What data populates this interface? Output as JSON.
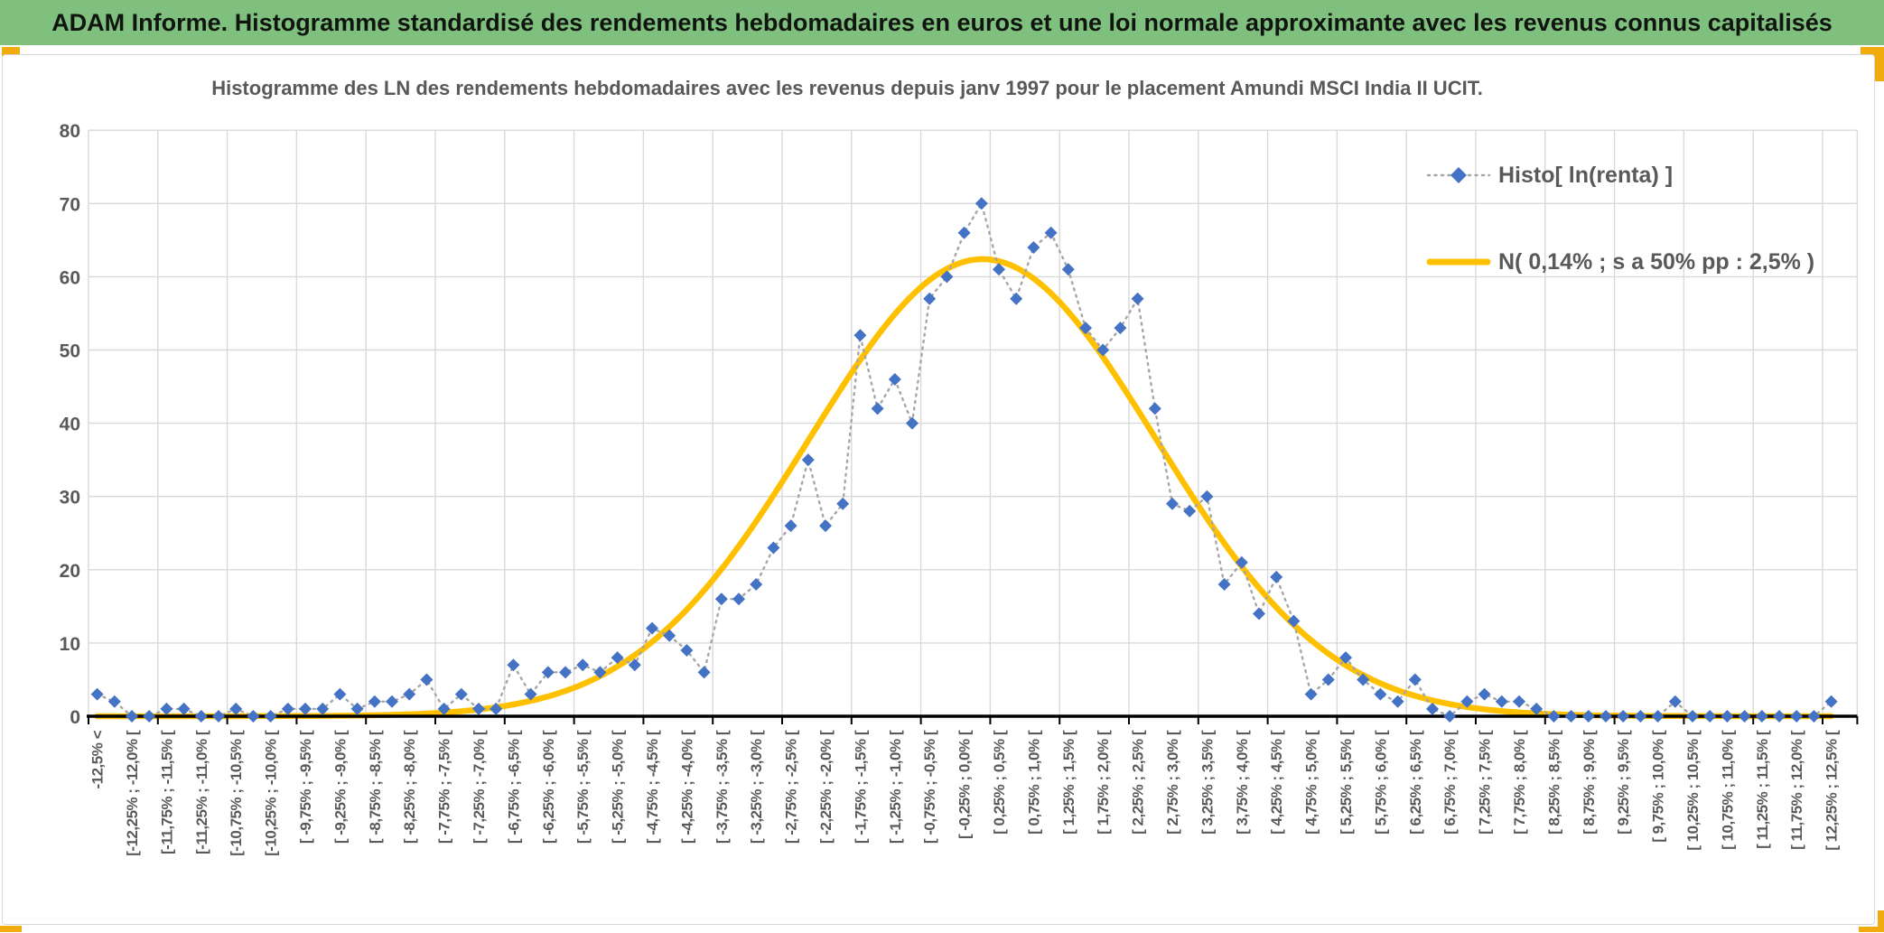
{
  "window": {
    "header_title": "ADAM Informe. Histogramme standardisé des rendements hebdomadaires en euros et une loi normale approximante avec les revenus connus capitalisés"
  },
  "chart": {
    "title": "Histogramme des LN des rendements hebdomadaires avec les revenus depuis janv 1997 pour le placement Amundi MSCI India II UCIT.",
    "legend": {
      "histo_label": "Histo[ ln(renta) ]",
      "normal_label": "N( 0,14% ; s a 50% pp : 2,5% )"
    },
    "colors": {
      "header_green": "#80C07E",
      "accent_orange": "#F2AB0E",
      "diamond_blue": "#4472C4",
      "dotted_gray": "#A6A6A6",
      "curve_gold": "#FFC000",
      "text_gray": "#595959",
      "gridline_gray": "#D9D9D9",
      "axis_black": "#000000"
    }
  },
  "chart_data": {
    "type": "line",
    "title": "Histogramme des LN des rendements hebdomadaires avec les revenus depuis janv 1997 pour le placement Amundi MSCI India II UCIT.",
    "ylim": [
      0,
      80
    ],
    "ytick_step": 10,
    "grid": true,
    "legend_position": "top-right-inside",
    "bin_width_pct": 0.25,
    "x_range_pct": [
      -12.5,
      12.5
    ],
    "label_every_n_bins": 2,
    "x_axis_labels": [
      "-12,5% <",
      "[-12,25% ; -12,0% [",
      "[-11,75% ; -11,5% [",
      "[-11,25% ; -11,0% [",
      "[-10,75% ; -10,5% [",
      "[-10,25% ; -10,0% [",
      "[ -9,75% ; -9,5% [",
      "[ -9,25% ; -9,0% [",
      "[ -8,75% ; -8,5% [",
      "[ -8,25% ; -8,0% [",
      "[ -7,75% ; -7,5% [",
      "[ -7,25% ; -7,0% [",
      "[ -6,75% ; -6,5% [",
      "[ -6,25% ; -6,0% [",
      "[ -5,75% ; -5,5% [",
      "[ -5,25% ; -5,0% [",
      "[ -4,75% ; -4,5% [",
      "[ -4,25% ; -4,0% [",
      "[ -3,75% ; -3,5% [",
      "[ -3,25% ; -3,0% [",
      "[ -2,75% ; -2,5% [",
      "[ -2,25% ; -2,0% [",
      "[ -1,75% ; -1,5% [",
      "[ -1,25% ; -1,0% [",
      "[ -0,75% ; -0,5% [",
      "[ -0,25% ; 0,0% [",
      "[ 0,25% ; 0,5% [",
      "[ 0,75% ; 1,0% [",
      "[ 1,25% ; 1,5% [",
      "[ 1,75% ; 2,0% [",
      "[ 2,25% ; 2,5% [",
      "[ 2,75% ; 3,0% [",
      "[ 3,25% ; 3,5% [",
      "[ 3,75% ; 4,0% [",
      "[ 4,25% ; 4,5% [",
      "[ 4,75% ; 5,0% [",
      "[ 5,25% ; 5,5% [",
      "[ 5,75% ; 6,0% [",
      "[ 6,25% ; 6,5% [",
      "[ 6,75% ; 7,0% [",
      "[ 7,25% ; 7,5% [",
      "[ 7,75% ; 8,0% [",
      "[ 8,25% ; 8,5% [",
      "[ 8,75% ; 9,0% [",
      "[ 9,25% ; 9,5% [",
      "[ 9,75% ; 10,0% [",
      "[ 10,25% ; 10,5% [",
      "[ 10,75% ; 11,0% [",
      "[ 11,25% ; 11,5% [",
      "[ 11,75% ; 12,0% [",
      "[ 12,25% ; 12,5% ["
    ],
    "series": [
      {
        "name": "Histo[ ln(renta) ]",
        "style": "diamond-markers-dotted-line",
        "color": "#4472C4",
        "values": [
          3,
          2,
          0,
          0,
          1,
          1,
          0,
          0,
          1,
          0,
          0,
          1,
          1,
          1,
          3,
          1,
          2,
          2,
          3,
          5,
          1,
          3,
          1,
          1,
          7,
          3,
          6,
          6,
          7,
          6,
          8,
          7,
          12,
          11,
          9,
          6,
          16,
          16,
          18,
          23,
          26,
          35,
          26,
          29,
          52,
          42,
          46,
          40,
          57,
          60,
          66,
          70,
          61,
          57,
          64,
          66,
          61,
          53,
          50,
          53,
          57,
          42,
          29,
          28,
          30,
          18,
          21,
          14,
          19,
          13,
          3,
          5,
          8,
          5,
          3,
          2,
          5,
          1,
          0,
          2,
          3,
          2,
          2,
          1,
          0,
          0,
          0,
          0,
          0,
          0,
          0,
          2,
          0,
          0,
          0,
          0,
          0,
          0,
          0,
          0,
          2
        ]
      },
      {
        "name": "N( 0,14% ; s a 50% pp : 2,5% )",
        "style": "smooth-line",
        "color": "#FFC000",
        "mean_pct": 0.14,
        "sd_pct": 2.5,
        "peak_height": 62.4
      }
    ]
  }
}
